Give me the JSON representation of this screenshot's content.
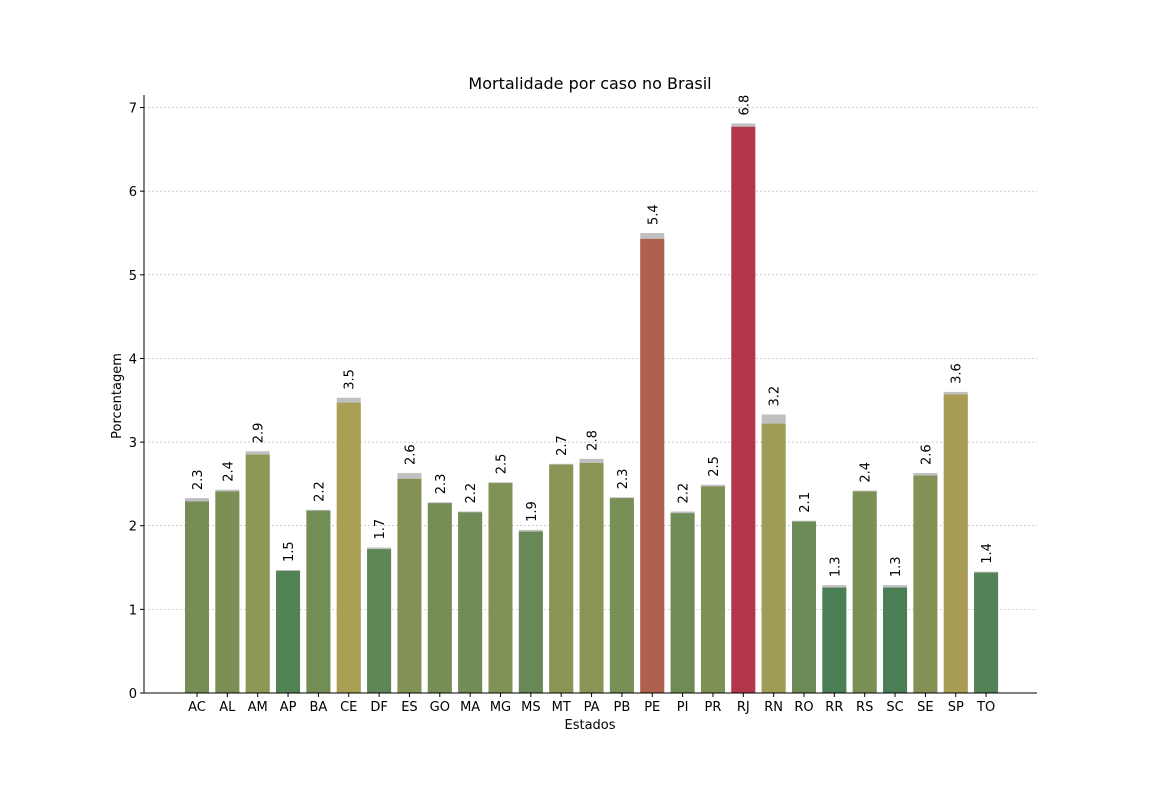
{
  "chart_data": {
    "type": "bar",
    "title": "Mortalidade por caso no Brasil",
    "xlabel": "Estados",
    "ylabel": "Porcentagem",
    "ylim": [
      0,
      7.15
    ],
    "yticks": [
      0,
      1,
      2,
      3,
      4,
      5,
      6,
      7
    ],
    "grid": "horizontal",
    "categories": [
      "AC",
      "AL",
      "AM",
      "AP",
      "BA",
      "CE",
      "DF",
      "ES",
      "GO",
      "MA",
      "MG",
      "MS",
      "MT",
      "PA",
      "PB",
      "PE",
      "PI",
      "PR",
      "RJ",
      "RN",
      "RO",
      "RR",
      "RS",
      "SC",
      "SE",
      "SP",
      "TO"
    ],
    "values": [
      2.29,
      2.41,
      2.85,
      1.46,
      2.18,
      3.47,
      1.72,
      2.56,
      2.27,
      2.16,
      2.51,
      1.93,
      2.73,
      2.75,
      2.33,
      5.43,
      2.15,
      2.47,
      6.77,
      3.22,
      2.05,
      1.26,
      2.41,
      1.26,
      2.6,
      3.57,
      1.44
    ],
    "values_prior": [
      2.33,
      2.43,
      2.89,
      1.47,
      2.19,
      3.53,
      1.74,
      2.63,
      2.28,
      2.17,
      2.52,
      1.95,
      2.74,
      2.8,
      2.34,
      5.5,
      2.17,
      2.49,
      6.81,
      3.33,
      2.06,
      1.29,
      2.42,
      1.29,
      2.63,
      3.6,
      1.45
    ],
    "data_labels": [
      "2.3",
      "2.4",
      "2.9",
      "1.5",
      "2.2",
      "3.5",
      "1.7",
      "2.6",
      "2.3",
      "2.2",
      "2.5",
      "1.9",
      "2.7",
      "2.8",
      "2.3",
      "5.4",
      "2.2",
      "2.5",
      "6.8",
      "3.2",
      "2.1",
      "1.3",
      "2.4",
      "1.3",
      "2.6",
      "3.6",
      "1.4"
    ],
    "colors": {
      "low": "#4a7f56",
      "mid": "#a9a055",
      "high": "#b3364a",
      "prior": "#c0c0c0"
    }
  }
}
